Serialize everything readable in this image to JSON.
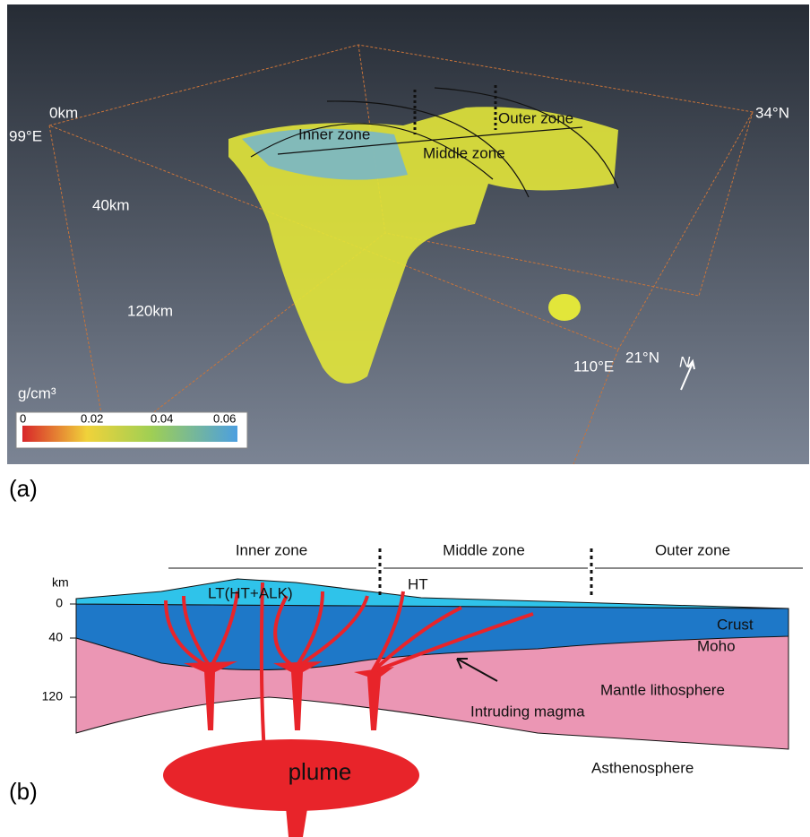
{
  "panel_a": {
    "label": "(a)",
    "depth_labels": [
      "0km",
      "40km",
      "120km"
    ],
    "coords": [
      "99°E",
      "34°N",
      "110°E",
      "21°N"
    ],
    "north": "N",
    "zones": [
      "Inner zone",
      "Middle zone",
      "Outer zone"
    ],
    "colorbar": {
      "unit": "g/cm³",
      "ticks": [
        "0",
        "0.02",
        "0.04",
        "0.06"
      ]
    }
  },
  "panel_b": {
    "label": "(b)",
    "zones": [
      "Inner zone",
      "Middle zone",
      "Outer zone"
    ],
    "depth_unit": "km",
    "depth_ticks": [
      "0",
      "40",
      "120"
    ],
    "layers": {
      "volcanics_inner": "LT(HT+ALK)",
      "volcanics_middle": "HT",
      "crust": "Crust",
      "moho": "Moho",
      "mantle": "Mantle lithosphere",
      "magma": "Intruding magma",
      "plume": "plume",
      "asthenosphere": "Asthenosphere"
    }
  }
}
